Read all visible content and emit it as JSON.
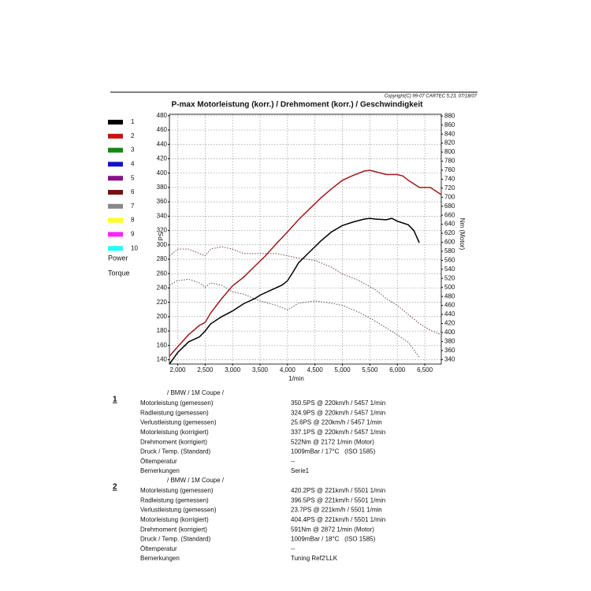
{
  "chart_data": {
    "type": "line",
    "copyright": "Copyright(C) 99-07 CARTEC 5.23, 07/18/07",
    "title": "P-max Motorleistung (korr.) / Drehmoment (korr.) / Geschwindigkeit",
    "x_label": "1/min",
    "y_label": "PS",
    "y2_label": "Nm (Motor)",
    "xlim": [
      1850,
      6800
    ],
    "xticks": [
      {
        "value": 2000,
        "label": "2,000"
      },
      {
        "value": 2500,
        "label": "2,500"
      },
      {
        "value": 3000,
        "label": "3,000"
      },
      {
        "value": 3500,
        "label": "3,500"
      },
      {
        "value": 4000,
        "label": "4,000"
      },
      {
        "value": 4500,
        "label": "4,500"
      },
      {
        "value": 5000,
        "label": "5,000"
      },
      {
        "value": 5500,
        "label": "5,500"
      },
      {
        "value": 6000,
        "label": "6,000"
      },
      {
        "value": 6500,
        "label": "6,500"
      }
    ],
    "ylim": [
      134,
      482
    ],
    "yticks": [
      140,
      160,
      180,
      200,
      220,
      240,
      260,
      280,
      300,
      320,
      340,
      360,
      380,
      400,
      420,
      440,
      460,
      480
    ],
    "y2lim": [
      330,
      884
    ],
    "y2ticks": [
      340,
      360,
      380,
      400,
      420,
      440,
      460,
      480,
      500,
      520,
      540,
      560,
      580,
      600,
      620,
      640,
      660,
      680,
      700,
      720,
      740,
      760,
      780,
      800,
      820,
      840,
      860,
      880
    ],
    "grid": true,
    "legend": [
      {
        "label": "1",
        "color": "#000000"
      },
      {
        "label": "2",
        "color": "#cc1111"
      },
      {
        "label": "3",
        "color": "#118811"
      },
      {
        "label": "4",
        "color": "#1111cc"
      },
      {
        "label": "5",
        "color": "#881188"
      },
      {
        "label": "6",
        "color": "#771111"
      },
      {
        "label": "7",
        "color": "#888888"
      },
      {
        "label": "8",
        "color": "#ffff22"
      },
      {
        "label": "9",
        "color": "#ff22ff"
      },
      {
        "label": "10",
        "color": "#22ffff"
      }
    ],
    "legend_styles": [
      "Power",
      "Torque"
    ],
    "series": [
      {
        "color": "#000000",
        "style": "solid",
        "axis": "y",
        "x": [
          1850,
          2000,
          2200,
          2400,
          2500,
          2600,
          2800,
          3000,
          3200,
          3400,
          3500,
          3700,
          3900,
          4000,
          4100,
          4200,
          4400,
          4600,
          4800,
          5000,
          5200,
          5400,
          5500,
          5600,
          5800,
          5900,
          6000,
          6200,
          6300,
          6400
        ],
        "values": [
          134,
          150,
          165,
          172,
          180,
          190,
          200,
          208,
          218,
          225,
          230,
          237,
          244,
          250,
          262,
          275,
          290,
          305,
          318,
          327,
          332,
          336,
          337,
          336,
          335,
          337,
          333,
          328,
          320,
          303
        ]
      },
      {
        "color": "#a01818",
        "style": "solid",
        "axis": "y",
        "x": [
          1850,
          2000,
          2200,
          2400,
          2500,
          2600,
          2800,
          3000,
          3200,
          3400,
          3600,
          3800,
          4000,
          4200,
          4400,
          4600,
          4800,
          5000,
          5200,
          5400,
          5500,
          5600,
          5800,
          6000,
          6100,
          6200,
          6400,
          6600,
          6800
        ],
        "values": [
          145,
          158,
          175,
          188,
          192,
          205,
          225,
          243,
          255,
          270,
          285,
          302,
          318,
          335,
          350,
          365,
          378,
          390,
          397,
          403,
          404,
          402,
          398,
          398,
          396,
          390,
          380,
          380,
          370
        ]
      },
      {
        "color": "#444444",
        "style": "dotted",
        "axis": "y2",
        "x": [
          1850,
          2000,
          2200,
          2400,
          2500,
          2600,
          2800,
          3000,
          3200,
          3500,
          3800,
          4000,
          4200,
          4500,
          4800,
          5000,
          5300,
          5600,
          5800,
          6000,
          6200,
          6400
        ],
        "values": [
          505,
          515,
          518,
          510,
          500,
          510,
          505,
          490,
          485,
          470,
          460,
          450,
          465,
          470,
          465,
          460,
          445,
          425,
          410,
          395,
          378,
          345
        ]
      },
      {
        "color": "#6a3030",
        "style": "dotted",
        "axis": "y2",
        "x": [
          1850,
          2000,
          2200,
          2400,
          2500,
          2600,
          2800,
          3000,
          3200,
          3500,
          3800,
          4000,
          4200,
          4500,
          4800,
          5000,
          5300,
          5600,
          5800,
          6000,
          6200,
          6400,
          6600,
          6800
        ],
        "values": [
          570,
          585,
          585,
          575,
          570,
          585,
          590,
          585,
          575,
          575,
          575,
          570,
          565,
          560,
          545,
          530,
          515,
          495,
          475,
          460,
          440,
          420,
          405,
          395
        ]
      }
    ]
  },
  "results": [
    {
      "number": "1",
      "heading": "/ BMW / 1M Coupe /",
      "rows": [
        [
          "Motorleistung (gemessen)",
          "350.5PS @ 220km/h / 5457 1/min"
        ],
        [
          "Radleistung (gemessen)",
          "324.9PS @ 220km/h / 5457 1/min"
        ],
        [
          "Verlustleistung (gemessen)",
          "25.6PS @ 220km/h / 5457 1/min"
        ],
        [
          "Motorleistung (korrigiert)",
          "337.1PS @ 220km/h / 5457 1/min"
        ],
        [
          "Drehmoment (korrigiert)",
          "522Nm @ 2172 1/min (Motor)"
        ],
        [
          "Druck / Temp. (Standard)",
          "1009mBar / 17°C   (ISO 1585)"
        ],
        [
          "Öltemperatur",
          "--"
        ],
        [
          "Bemerkungen",
          "Serie1"
        ]
      ]
    },
    {
      "number": "2",
      "heading": "/ BMW / 1M Coupe /",
      "rows": [
        [
          "Motorleistung (gemessen)",
          "420.2PS @ 221km/h / 5501 1/min"
        ],
        [
          "Radleistung (gemessen)",
          "396.5PS @ 221km/h / 5501 1/min"
        ],
        [
          "Verlustleistung (gemessen)",
          "23.7PS @ 221km/h / 5501 1/min"
        ],
        [
          "Motorleistung (korrigiert)",
          "404.4PS @ 221km/h / 5501 1/min"
        ],
        [
          "Drehmoment (korrigiert)",
          "591Nm @ 2872 1/min (Motor)"
        ],
        [
          "Druck / Temp. (Standard)",
          "1009mBar / 18°C   (ISO 1585)"
        ],
        [
          "Öltemperatur",
          "--"
        ],
        [
          "Bemerkungen",
          "Tuning Ref2'LLK"
        ]
      ]
    }
  ]
}
